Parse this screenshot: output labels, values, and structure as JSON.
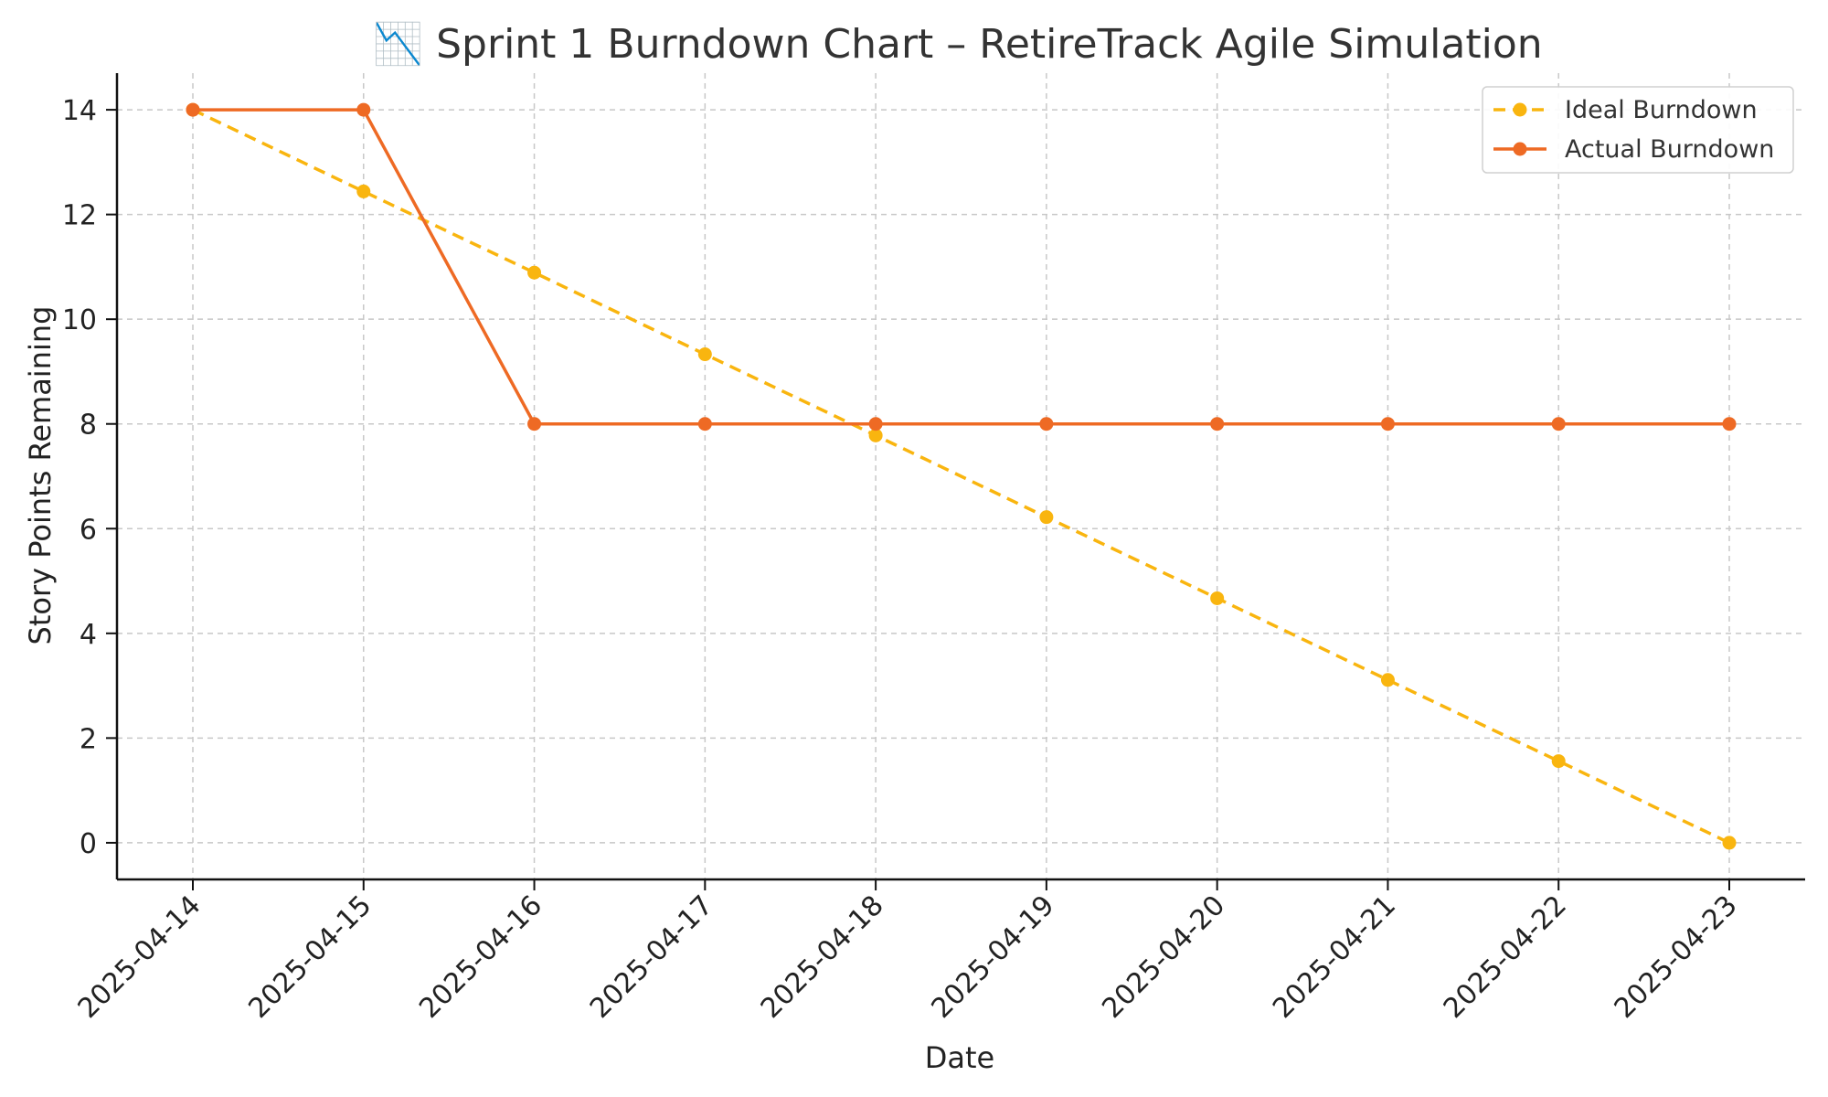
{
  "chart_data": {
    "type": "line",
    "title": "📉 Sprint 1 Burndown Chart – RetireTrack Agile Simulation",
    "xlabel": "Date",
    "ylabel": "Story Points Remaining",
    "x": [
      "2025-04-14",
      "2025-04-15",
      "2025-04-16",
      "2025-04-17",
      "2025-04-18",
      "2025-04-19",
      "2025-04-20",
      "2025-04-21",
      "2025-04-22",
      "2025-04-23"
    ],
    "ylim": [
      -0.7,
      14.7
    ],
    "yticks": [
      0,
      2,
      4,
      6,
      8,
      10,
      12,
      14
    ],
    "grid": true,
    "legend_position": "top-right",
    "series": [
      {
        "name": "Ideal Burndown",
        "color": "#F9B50F",
        "style": "dashed",
        "values": [
          14,
          12.44,
          10.89,
          9.33,
          7.78,
          6.22,
          4.67,
          3.11,
          1.56,
          0
        ]
      },
      {
        "name": "Actual Burndown",
        "color": "#EE6A24",
        "style": "solid",
        "values": [
          14,
          14,
          8,
          8,
          8,
          8,
          8,
          8,
          8,
          8
        ]
      }
    ]
  }
}
